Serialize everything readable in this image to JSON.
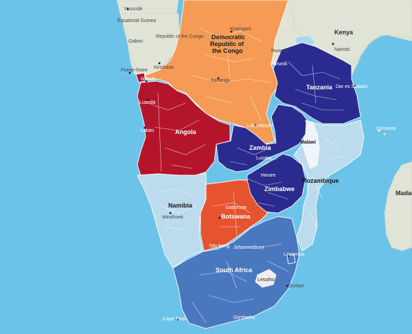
{
  "map": {
    "colors": {
      "ocean": "#6cc3ea",
      "land": "#dfe4d6",
      "drc": "#f59b55",
      "angola": "#b5152b",
      "tanzania_zambia_zimbabwe": "#2b2b8f",
      "botswana": "#e6532f",
      "south_africa": "#4a78bf",
      "namibia_mozambique_malawi": "#bcdcee",
      "lesotho": "#eeeeee",
      "lake": "#a7daf2"
    },
    "countries": {
      "equatorial_guinea": "Equatorial Guinea",
      "gabon": "Gabon",
      "republic_congo": "Republic of the Congo",
      "drc_line1": "Democratic",
      "drc_line2": "Republic of",
      "drc_line3": "the Congo",
      "rwanda": "Rwanda",
      "burundi": "Burundi",
      "kenya": "Kenya",
      "tanzania": "Tanzania",
      "angola": "Angola",
      "zambia": "Zambia",
      "malawi": "Malawi",
      "mozambique": "Mozambique",
      "zimbabwe": "Zimbabwe",
      "namibia": "Namibia",
      "botswana": "Botswana",
      "south_africa": "South Africa",
      "lesotho": "Lesotho",
      "comoros": "Comoros",
      "madagascar": "Madag"
    },
    "cities": {
      "yaounde": "Yaoundé",
      "kisangani": "Kisangani",
      "nairobi": "Nairobi",
      "pointe_noire": "Pointe-Noire",
      "kinshasa": "Kinshasa",
      "matadi": "Matadi",
      "dar_es_salaam": "Dar es Salaam",
      "kananga": "Kananga",
      "luanda": "Luanda",
      "lubumbashi": "Lubumbashi",
      "lobito": "Lobito",
      "lusaka": "Lusaka",
      "harare": "Harare",
      "windhoek": "Windhoek",
      "gaborone": "Gaborone",
      "tshabong": "Tshabong",
      "johannesburg": "Johannesburg",
      "lavumisa": "Lavumisa",
      "durban": "Durban",
      "cape_town": "Cape Town",
      "gqeberha": "Gqeberha"
    }
  }
}
